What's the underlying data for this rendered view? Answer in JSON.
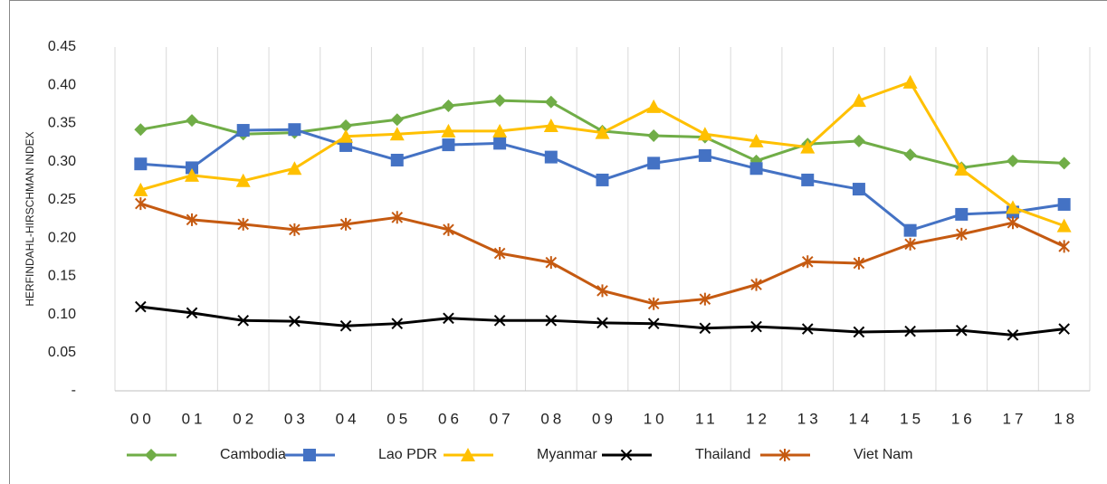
{
  "chart_data": {
    "type": "line",
    "y_label": "HERFINDAHL-HIRSCHMAN INDEX",
    "categories": [
      "00",
      "01",
      "02",
      "03",
      "04",
      "05",
      "06",
      "07",
      "08",
      "09",
      "10",
      "11",
      "12",
      "13",
      "14",
      "15",
      "16",
      "17",
      "18"
    ],
    "ylim": [
      0,
      0.45
    ],
    "yticks": [
      {
        "value": 0,
        "label": "-"
      },
      0.05,
      {
        "value": 0.1,
        "label": "0.10"
      },
      0.15,
      {
        "value": 0.2,
        "label": "0.20"
      },
      0.25,
      {
        "value": 0.3,
        "label": "0.30"
      },
      0.35,
      {
        "value": 0.4,
        "label": "0.40"
      },
      0.45
    ],
    "grid": "x",
    "legend": "bottom",
    "series": [
      {
        "name": "Cambodia",
        "color": "#70ad47",
        "marker": "diamond",
        "values": [
          0.342,
          0.354,
          0.336,
          0.338,
          0.347,
          0.355,
          0.373,
          0.38,
          0.378,
          0.34,
          0.334,
          0.332,
          0.301,
          0.323,
          0.327,
          0.309,
          0.292,
          0.301,
          0.298
        ]
      },
      {
        "name": "Lao PDR",
        "color": "#4472c4",
        "marker": "square",
        "values": [
          0.297,
          0.292,
          0.341,
          0.342,
          0.321,
          0.302,
          0.322,
          0.324,
          0.306,
          0.276,
          0.298,
          0.308,
          0.291,
          0.276,
          0.264,
          0.21,
          0.231,
          0.234,
          0.244
        ]
      },
      {
        "name": "Myanmar",
        "color": "#ffc000",
        "marker": "triangle",
        "values": [
          0.263,
          0.282,
          0.275,
          0.291,
          0.333,
          0.336,
          0.34,
          0.34,
          0.347,
          0.338,
          0.372,
          0.336,
          0.327,
          0.319,
          0.38,
          0.404,
          0.29,
          0.24,
          0.216
        ]
      },
      {
        "name": "Thailand",
        "color": "#000000",
        "marker": "x",
        "values": [
          0.11,
          0.102,
          0.092,
          0.091,
          0.085,
          0.088,
          0.095,
          0.092,
          0.092,
          0.089,
          0.088,
          0.082,
          0.084,
          0.081,
          0.077,
          0.078,
          0.079,
          0.073,
          0.081
        ]
      },
      {
        "name": "Viet Nam",
        "color": "#c55a11",
        "marker": "asterisk",
        "values": [
          0.245,
          0.224,
          0.218,
          0.211,
          0.218,
          0.227,
          0.211,
          0.18,
          0.168,
          0.131,
          0.114,
          0.12,
          0.139,
          0.169,
          0.167,
          0.192,
          0.205,
          0.22,
          0.189
        ]
      }
    ]
  }
}
